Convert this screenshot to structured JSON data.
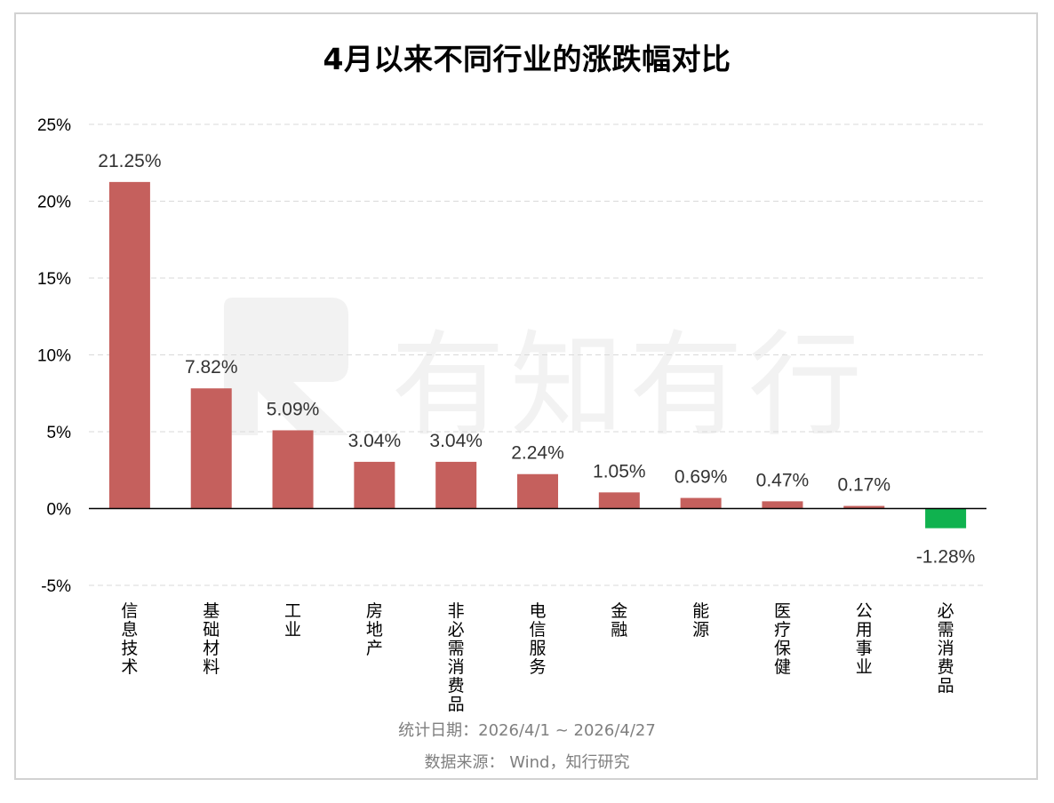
{
  "title": "4月以来不同行业的涨跌幅对比",
  "footer": {
    "period": "统计日期：2026/4/1 ~ 2026/4/27",
    "source": "数据来源： Wind，知行研究"
  },
  "watermark": "有知有行",
  "colors": {
    "positive": "#c5605d",
    "negative": "#10b24f",
    "grid": "#d9d9d9",
    "axis": "#000000"
  },
  "chart_data": {
    "type": "bar",
    "title": "4月以来不同行业的涨跌幅对比",
    "categories": [
      "信息技术",
      "基础材料",
      "工业",
      "房地产",
      "非必需消费品",
      "电信服务",
      "金融",
      "能源",
      "医疗保健",
      "公用事业",
      "必需消费品"
    ],
    "values": [
      21.25,
      7.82,
      5.09,
      3.04,
      3.04,
      2.24,
      1.05,
      0.69,
      0.47,
      0.17,
      -1.28
    ],
    "data_labels": [
      "21.25%",
      "7.82%",
      "5.09%",
      "3.04%",
      "3.04%",
      "2.24%",
      "1.05%",
      "0.69%",
      "0.47%",
      "0.17%",
      "-1.28%"
    ],
    "ylim": [
      -5,
      25
    ],
    "yticks": [
      25,
      20,
      15,
      10,
      5,
      0,
      -5
    ],
    "ytick_labels": [
      "25%",
      "20%",
      "15%",
      "10%",
      "5%",
      "0%",
      "-5%"
    ],
    "xlabel": "",
    "ylabel": "",
    "grid": true,
    "legend": "none"
  }
}
